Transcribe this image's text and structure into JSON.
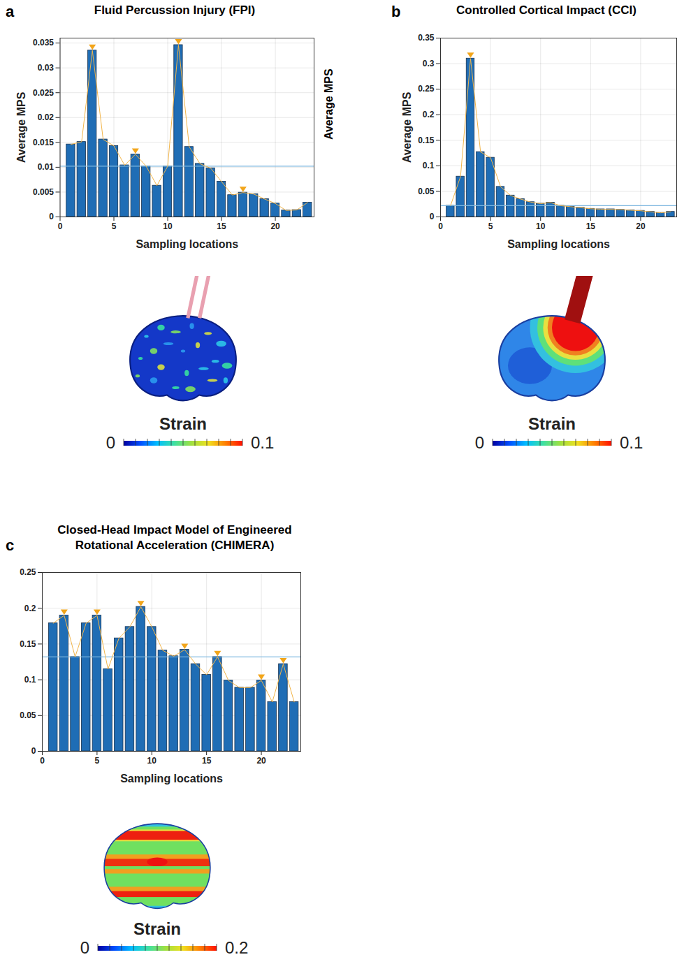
{
  "chart_data": [
    {
      "type": "bar",
      "panel_label": "a",
      "title": "Fluid Percussion Injury (FPI)",
      "x_label": "Sampling locations",
      "y_label": "Average MPS",
      "x": [
        1,
        2,
        3,
        4,
        5,
        6,
        7,
        8,
        9,
        10,
        11,
        12,
        13,
        14,
        15,
        16,
        17,
        18,
        19,
        20,
        21,
        22,
        23
      ],
      "values": [
        0.0146,
        0.0151,
        0.0335,
        0.0156,
        0.0143,
        0.0104,
        0.0126,
        0.0102,
        0.0063,
        0.0102,
        0.0346,
        0.0141,
        0.0107,
        0.0098,
        0.0071,
        0.0044,
        0.0049,
        0.0046,
        0.0036,
        0.0027,
        0.0013,
        0.0014,
        0.0029
      ],
      "color": "#1f6db5",
      "threshold": 0.0102,
      "peaks": [
        3,
        7,
        11,
        17
      ],
      "xlim": [
        0,
        23.6
      ],
      "xticks": [
        0,
        5,
        10,
        15,
        20
      ],
      "ylim": [
        0,
        0.036
      ],
      "yticks": [
        0,
        0.005,
        0.01,
        0.015,
        0.02,
        0.025,
        0.03,
        0.035
      ],
      "grid": true,
      "annotations": [
        "Average MPS"
      ],
      "colorbar": {
        "title": "Strain",
        "range": [
          0,
          0.1
        ],
        "ticks": [
          0,
          0.1
        ]
      }
    },
    {
      "type": "bar",
      "panel_label": "b",
      "title": "Controlled Cortical Impact (CCI)",
      "x_label": "Sampling locations",
      "y_label": "Average MPS",
      "x": [
        1,
        2,
        3,
        4,
        5,
        6,
        7,
        8,
        9,
        10,
        11,
        12,
        13,
        14,
        15,
        16,
        17,
        18,
        19,
        20,
        21,
        22,
        23
      ],
      "values": [
        0.022,
        0.079,
        0.31,
        0.127,
        0.116,
        0.059,
        0.042,
        0.035,
        0.029,
        0.026,
        0.028,
        0.022,
        0.02,
        0.018,
        0.016,
        0.015,
        0.015,
        0.014,
        0.013,
        0.012,
        0.01,
        0.008,
        0.01
      ],
      "color": "#1f6db5",
      "threshold": 0.022,
      "peaks": [
        3
      ],
      "xlim": [
        0,
        23.6
      ],
      "xticks": [
        0,
        5,
        10,
        15,
        20
      ],
      "ylim": [
        0,
        0.35
      ],
      "yticks": [
        0,
        0.05,
        0.1,
        0.15,
        0.2,
        0.25,
        0.3,
        0.35
      ],
      "grid": true,
      "colorbar": {
        "title": "Strain",
        "range": [
          0,
          0.1
        ],
        "ticks": [
          0,
          0.1
        ]
      }
    },
    {
      "type": "bar",
      "panel_label": "c",
      "title": "Closed-Head Impact Model of Engineered Rotational Acceleration (CHIMERA)",
      "x_label": "Sampling locations",
      "x": [
        1,
        2,
        3,
        4,
        5,
        6,
        7,
        8,
        9,
        10,
        11,
        12,
        13,
        14,
        15,
        16,
        17,
        18,
        19,
        20,
        21,
        22,
        23
      ],
      "values": [
        0.179,
        0.19,
        0.132,
        0.179,
        0.19,
        0.115,
        0.158,
        0.174,
        0.202,
        0.174,
        0.141,
        0.133,
        0.142,
        0.122,
        0.107,
        0.132,
        0.099,
        0.089,
        0.089,
        0.099,
        0.069,
        0.122,
        0.069
      ],
      "color": "#1f6db5",
      "threshold": 0.132,
      "peaks": [
        2,
        5,
        9,
        13,
        16,
        20,
        22
      ],
      "xlim": [
        0,
        23.6
      ],
      "xticks": [
        0,
        5,
        10,
        15,
        20
      ],
      "ylim": [
        0,
        0.25
      ],
      "yticks": [
        0,
        0.05,
        0.1,
        0.15,
        0.2,
        0.25
      ],
      "grid": true,
      "colorbar": {
        "title": "Strain",
        "range": [
          0,
          0.2
        ],
        "ticks": [
          0,
          0.2
        ]
      }
    }
  ]
}
